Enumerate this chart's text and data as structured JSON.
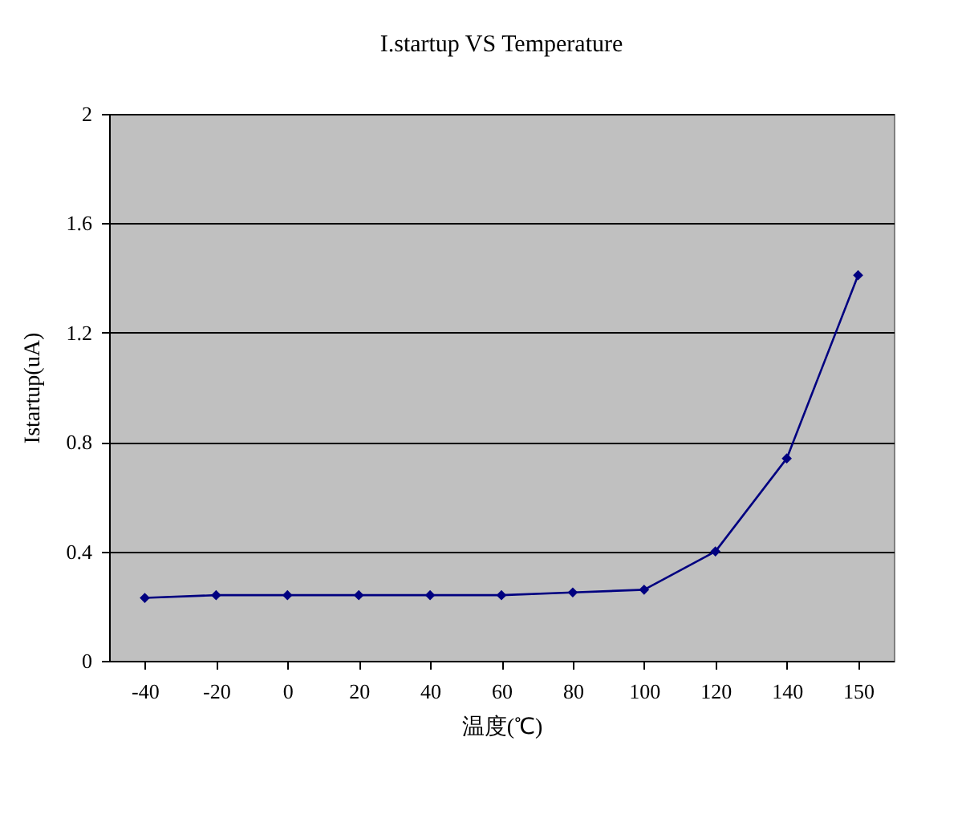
{
  "chart_data": {
    "type": "line",
    "title": "I.startup  VS  Temperature",
    "xlabel": "温度(℃)",
    "ylabel": "Istartup(uA)",
    "categories": [
      "-40",
      "-20",
      "0",
      "20",
      "40",
      "60",
      "80",
      "100",
      "120",
      "140",
      "150"
    ],
    "series": [
      {
        "color": "#000080",
        "values": [
          0.23,
          0.24,
          0.24,
          0.24,
          0.24,
          0.24,
          0.25,
          0.26,
          0.4,
          0.74,
          1.41
        ]
      }
    ],
    "ylim": [
      0,
      2
    ],
    "yticks": [
      0,
      0.4,
      0.8,
      1.2,
      1.6,
      2
    ],
    "grid": "y",
    "marker": "diamond",
    "legend": false
  }
}
